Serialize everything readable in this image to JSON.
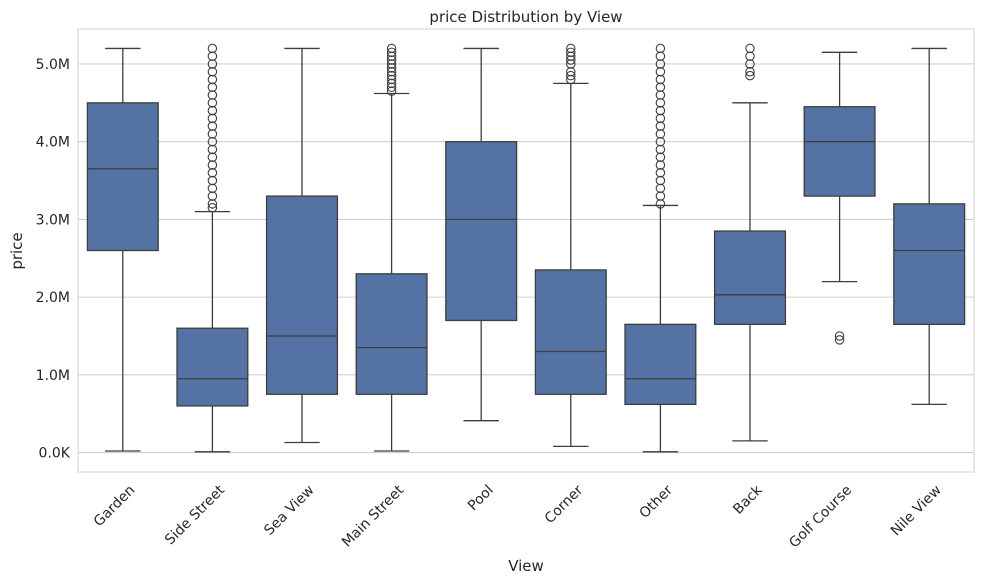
{
  "chart_data": {
    "type": "box",
    "title": "price Distribution by View",
    "xlabel": "View",
    "ylabel": "price",
    "ylim": [
      -250000,
      5450000
    ],
    "y_ticks": [
      {
        "value": 0,
        "label": "0.0K"
      },
      {
        "value": 1000000,
        "label": "1.0M"
      },
      {
        "value": 2000000,
        "label": "2.0M"
      },
      {
        "value": 3000000,
        "label": "3.0M"
      },
      {
        "value": 4000000,
        "label": "4.0M"
      },
      {
        "value": 5000000,
        "label": "5.0M"
      }
    ],
    "grid": true,
    "box_color": "#5572a4",
    "line_color": "#3d3d3d",
    "categories": [
      "Garden",
      "Side Street",
      "Sea View",
      "Main Street",
      "Pool",
      "Corner",
      "Other",
      "Back",
      "Golf Course",
      "Nile View"
    ],
    "boxes": [
      {
        "category": "Garden",
        "whisker_low": 20000,
        "q1": 2600000,
        "median": 3650000,
        "q3": 4500000,
        "whisker_high": 5200000,
        "outliers": []
      },
      {
        "category": "Side Street",
        "whisker_low": 10000,
        "q1": 600000,
        "median": 950000,
        "q3": 1600000,
        "whisker_high": 3100000,
        "outliers": [
          3150000,
          3200000,
          3300000,
          3400000,
          3500000,
          3600000,
          3700000,
          3800000,
          3900000,
          4000000,
          4100000,
          4200000,
          4300000,
          4400000,
          4500000,
          4600000,
          4700000,
          4800000,
          4900000,
          5000000,
          5100000,
          5200000
        ]
      },
      {
        "category": "Sea View",
        "whisker_low": 130000,
        "q1": 750000,
        "median": 1500000,
        "q3": 3300000,
        "whisker_high": 5200000,
        "outliers": []
      },
      {
        "category": "Main Street",
        "whisker_low": 20000,
        "q1": 750000,
        "median": 1350000,
        "q3": 2300000,
        "whisker_high": 4620000,
        "outliers": [
          4650000,
          4700000,
          4750000,
          4800000,
          4850000,
          4900000,
          4950000,
          5000000,
          5050000,
          5100000,
          5150000,
          5200000
        ]
      },
      {
        "category": "Pool",
        "whisker_low": 410000,
        "q1": 1700000,
        "median": 3000000,
        "q3": 4000000,
        "whisker_high": 5200000,
        "outliers": []
      },
      {
        "category": "Corner",
        "whisker_low": 80000,
        "q1": 750000,
        "median": 1300000,
        "q3": 2350000,
        "whisker_high": 4750000,
        "outliers": [
          4800000,
          4850000,
          4900000,
          5000000,
          5050000,
          5100000,
          5150000,
          5200000
        ]
      },
      {
        "category": "Other",
        "whisker_low": 10000,
        "q1": 620000,
        "median": 950000,
        "q3": 1650000,
        "whisker_high": 3180000,
        "outliers": [
          3200000,
          3300000,
          3400000,
          3500000,
          3600000,
          3700000,
          3800000,
          3900000,
          4000000,
          4100000,
          4200000,
          4300000,
          4400000,
          4500000,
          4600000,
          4700000,
          4800000,
          4900000,
          5000000,
          5100000,
          5200000
        ]
      },
      {
        "category": "Back",
        "whisker_low": 150000,
        "q1": 1650000,
        "median": 2030000,
        "q3": 2850000,
        "whisker_high": 4500000,
        "outliers": [
          4850000,
          4900000,
          5000000,
          5100000,
          5200000
        ]
      },
      {
        "category": "Golf Course",
        "whisker_low": 2200000,
        "q1": 3300000,
        "median": 4000000,
        "q3": 4450000,
        "whisker_high": 5150000,
        "outliers": [
          1450000,
          1500000
        ]
      },
      {
        "category": "Nile View",
        "whisker_low": 620000,
        "q1": 1650000,
        "median": 2600000,
        "q3": 3200000,
        "whisker_high": 5200000,
        "outliers": []
      }
    ]
  }
}
